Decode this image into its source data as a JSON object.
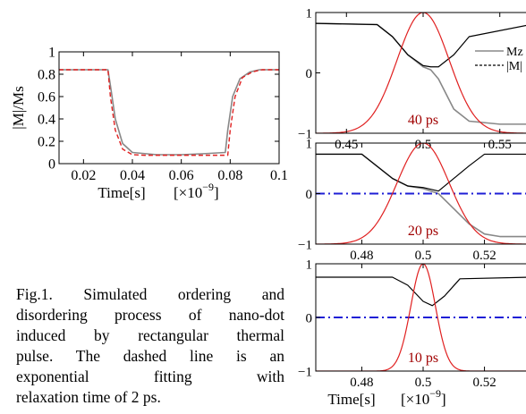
{
  "caption": {
    "lines": [
      "Fig.1. Simulated ordering and",
      "disordering process of nano-dot",
      "induced by rectangular thermal",
      "pulse. The dashed line is an",
      "exponential fitting with",
      "relaxation time of 2 ps."
    ]
  },
  "colors": {
    "axis": "#000000",
    "mz": "#888888",
    "fit": "#e02020",
    "pulse": "#e02020",
    "zero_line": "#1f1fd6",
    "label": "#a00000"
  },
  "chart_data": [
    {
      "type": "line",
      "ylabel": "|M|/Ms",
      "xlabel": "Time[s]",
      "x_multiplier": "[×10",
      "x_multiplier_exp": "−9",
      "x_multiplier_close": "]",
      "xlim": [
        0.01,
        0.1
      ],
      "ylim": [
        0,
        1
      ],
      "xticks": [
        "0.02",
        "0.04",
        "0.06",
        "0.08",
        "0.1"
      ],
      "yticks": [
        "0",
        "0.2",
        "0.4",
        "0.6",
        "0.8",
        "1"
      ],
      "series": [
        {
          "style": "solid-gray",
          "x": [
            0.01,
            0.03,
            0.031,
            0.033,
            0.036,
            0.04,
            0.045,
            0.05,
            0.06,
            0.07,
            0.078,
            0.079,
            0.081,
            0.084,
            0.088,
            0.092,
            0.1
          ],
          "y": [
            0.84,
            0.84,
            0.7,
            0.4,
            0.18,
            0.1,
            0.09,
            0.08,
            0.08,
            0.09,
            0.1,
            0.3,
            0.6,
            0.76,
            0.82,
            0.84,
            0.84
          ]
        },
        {
          "style": "dashed-red",
          "x": [
            0.01,
            0.03,
            0.031,
            0.033,
            0.036,
            0.04,
            0.045,
            0.05,
            0.06,
            0.07,
            0.079,
            0.08,
            0.082,
            0.085,
            0.089,
            0.093,
            0.1
          ],
          "y": [
            0.84,
            0.84,
            0.6,
            0.3,
            0.13,
            0.08,
            0.075,
            0.075,
            0.075,
            0.075,
            0.075,
            0.3,
            0.6,
            0.77,
            0.82,
            0.84,
            0.84
          ]
        }
      ]
    },
    {
      "type": "line",
      "panel_label": "40 ps",
      "xlim": [
        0.43,
        0.57
      ],
      "ylim": [
        -1,
        1
      ],
      "xticks": [
        "0.45",
        "0.5",
        "0.55"
      ],
      "yticks": [
        "−1",
        "0",
        "1"
      ],
      "legend": [
        "Mz",
        "|M|"
      ],
      "series": [
        {
          "name": "Mz",
          "style": "solid-gray",
          "x": [
            0.43,
            0.47,
            0.48,
            0.49,
            0.5,
            0.505,
            0.51,
            0.52,
            0.53,
            0.55,
            0.57
          ],
          "y": [
            0.82,
            0.8,
            0.6,
            0.3,
            0.1,
            0.05,
            -0.1,
            -0.6,
            -0.8,
            -0.85,
            -0.85
          ]
        },
        {
          "name": "|M|",
          "style": "solid-black",
          "x": [
            0.43,
            0.47,
            0.48,
            0.49,
            0.5,
            0.505,
            0.51,
            0.52,
            0.53,
            0.57
          ],
          "y": [
            0.82,
            0.8,
            0.6,
            0.3,
            0.12,
            0.1,
            0.1,
            0.3,
            0.6,
            0.8
          ]
        },
        {
          "name": "pulse",
          "style": "solid-red",
          "center": 0.5,
          "sigma": 0.017,
          "low": -1,
          "high": 1
        }
      ]
    },
    {
      "type": "line",
      "panel_label": "20 ps",
      "xlim": [
        0.465,
        0.535
      ],
      "ylim": [
        -1,
        1
      ],
      "xticks": [
        "0.48",
        "0.5",
        "0.52"
      ],
      "yticks": [
        "−1",
        "0",
        "1"
      ],
      "series": [
        {
          "name": "Mz",
          "style": "solid-gray",
          "x": [
            0.465,
            0.48,
            0.49,
            0.495,
            0.5,
            0.505,
            0.51,
            0.515,
            0.52,
            0.525,
            0.535
          ],
          "y": [
            0.78,
            0.78,
            0.3,
            0.15,
            0.1,
            0.0,
            -0.3,
            -0.6,
            -0.8,
            -0.85,
            -0.85
          ]
        },
        {
          "name": "|M|",
          "style": "solid-black",
          "x": [
            0.465,
            0.48,
            0.49,
            0.495,
            0.5,
            0.505,
            0.51,
            0.515,
            0.52,
            0.535
          ],
          "y": [
            0.78,
            0.78,
            0.3,
            0.15,
            0.12,
            0.05,
            0.3,
            0.55,
            0.78,
            0.78
          ]
        },
        {
          "name": "zero",
          "style": "dashdot-blue",
          "y": 0
        },
        {
          "name": "pulse",
          "style": "solid-red",
          "center": 0.5,
          "sigma": 0.0085,
          "low": -1,
          "high": 1
        }
      ]
    },
    {
      "type": "line",
      "panel_label": "10 ps",
      "xlabel": "Time[s]",
      "x_multiplier": "[×10",
      "x_multiplier_exp": "−9",
      "x_multiplier_close": "]",
      "xlim": [
        0.465,
        0.535
      ],
      "ylim": [
        -1,
        1
      ],
      "xticks": [
        "0.48",
        "0.5",
        "0.52"
      ],
      "yticks": [
        "−1",
        "0",
        "1"
      ],
      "series": [
        {
          "name": "|M|",
          "style": "solid-black",
          "x": [
            0.465,
            0.49,
            0.495,
            0.5,
            0.503,
            0.507,
            0.512,
            0.535
          ],
          "y": [
            0.75,
            0.75,
            0.6,
            0.3,
            0.22,
            0.4,
            0.72,
            0.75
          ]
        },
        {
          "name": "zero",
          "style": "dashdot-blue",
          "y": 0
        },
        {
          "name": "pulse",
          "style": "solid-red",
          "center": 0.5,
          "sigma": 0.004,
          "low": -1,
          "high": 1
        }
      ]
    }
  ]
}
